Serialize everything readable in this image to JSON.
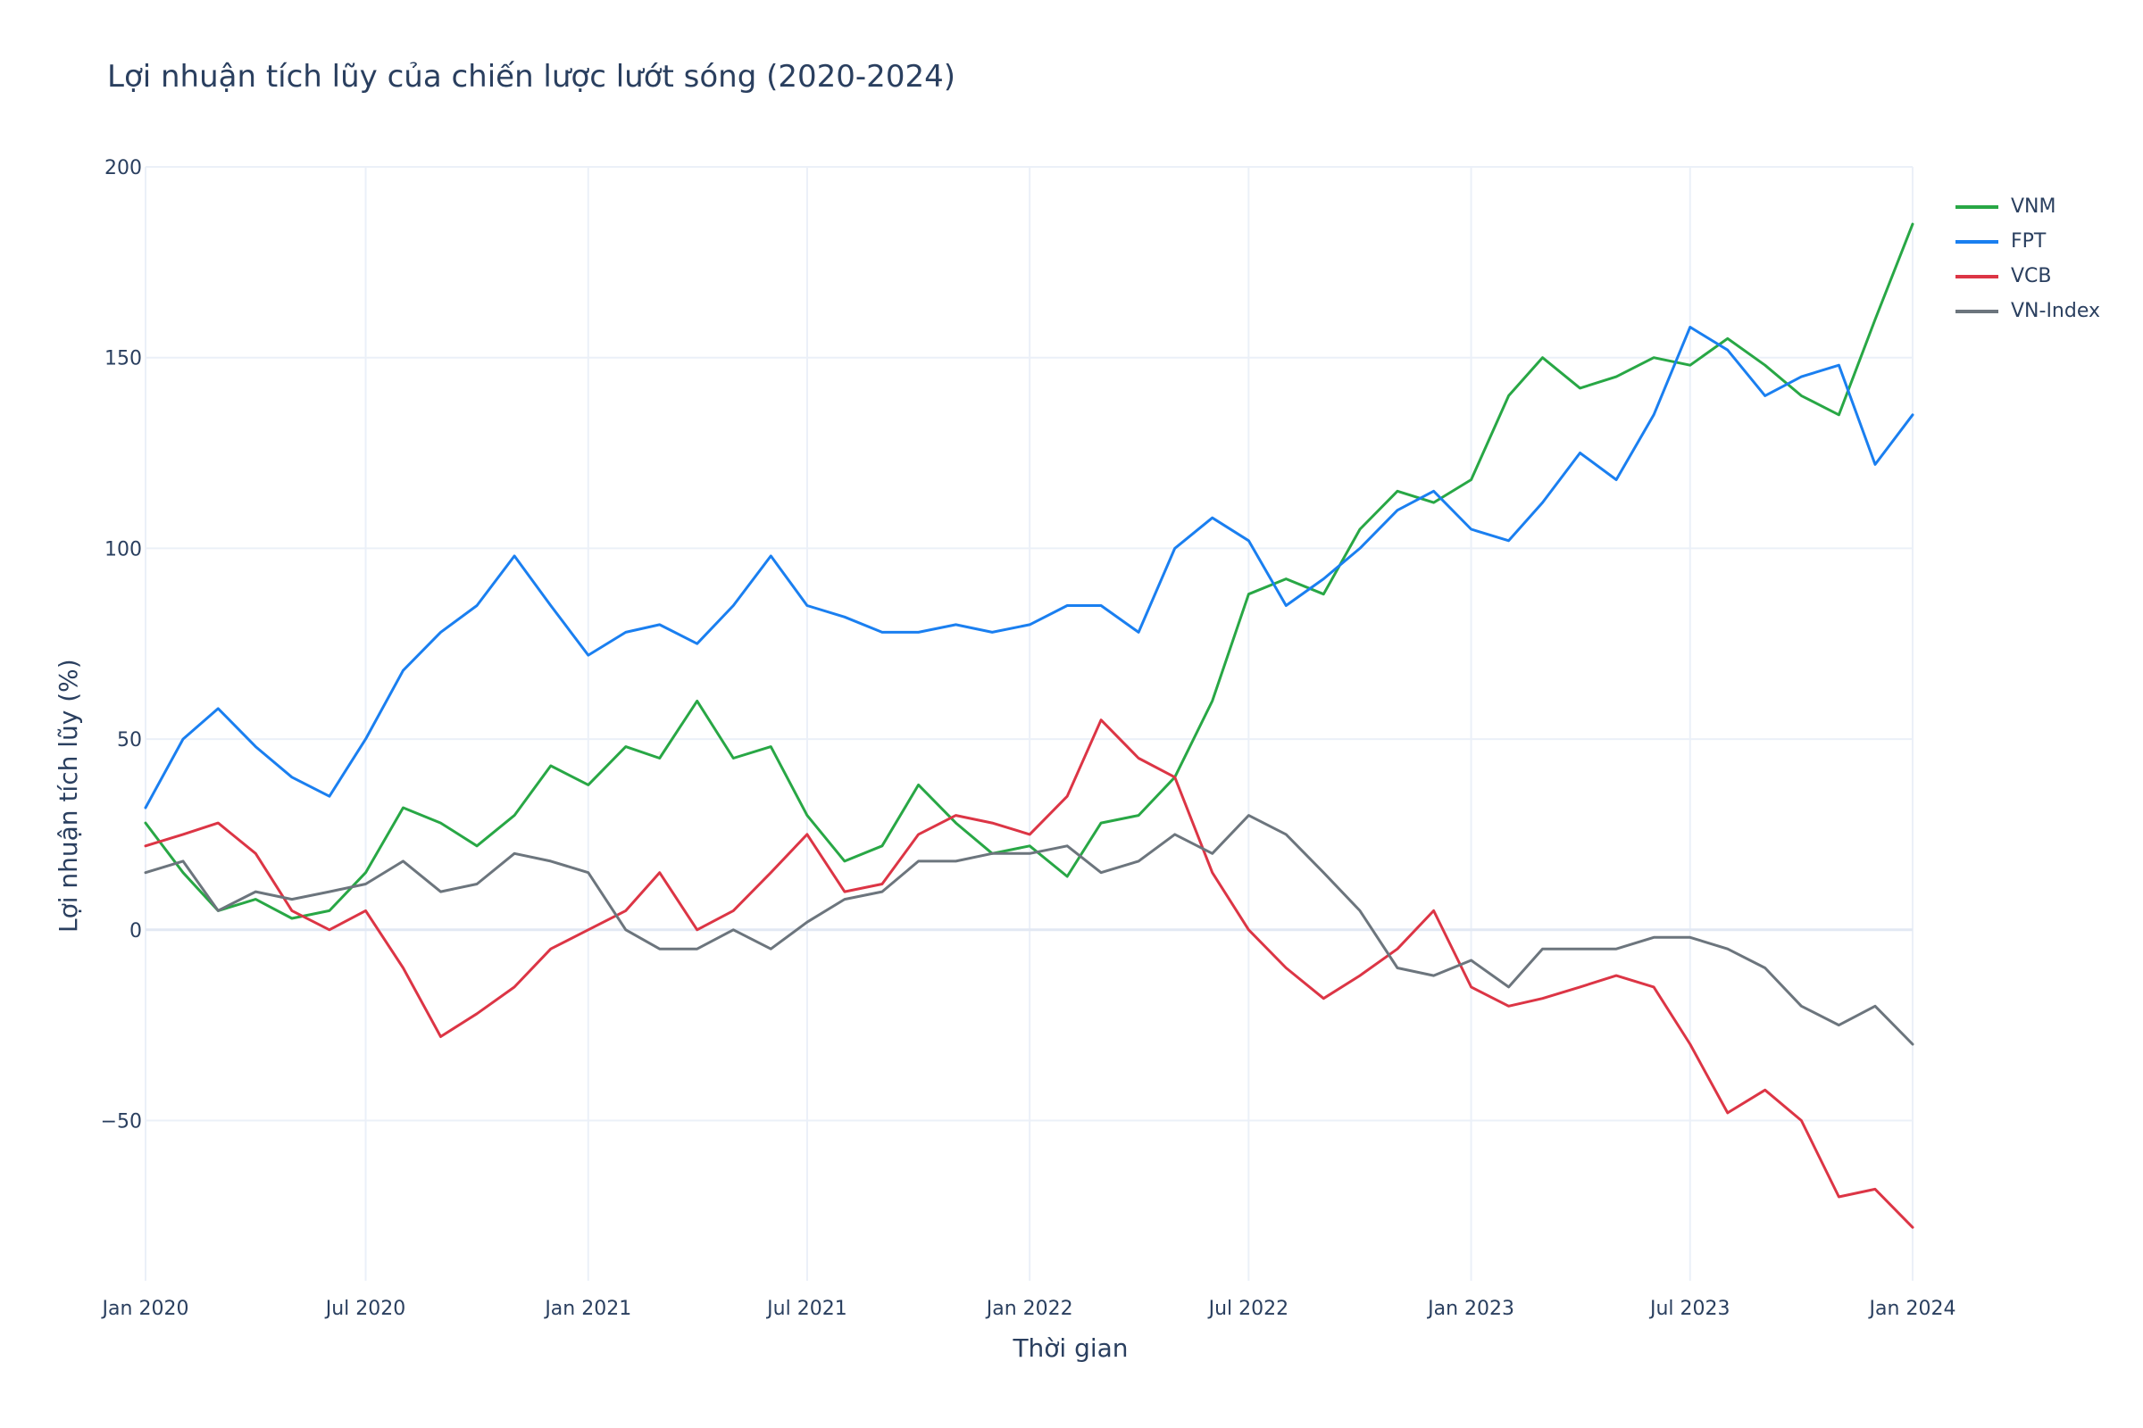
{
  "chart_data": {
    "type": "line",
    "title": "Lợi nhuận tích lũy của chiến lược lướt sóng (2020-2024)",
    "xlabel": "Thời gian",
    "ylabel": "Lợi nhuận tích lũy (%)",
    "x_tick_labels": [
      "Jan 2020",
      "Jul 2020",
      "Jan 2021",
      "Jul 2021",
      "Jan 2022",
      "Jul 2022",
      "Jan 2023",
      "Jul 2023",
      "Jan 2024"
    ],
    "x_tick_dates": [
      "2020-01-01",
      "2020-07-01",
      "2021-01-01",
      "2021-07-01",
      "2022-01-01",
      "2022-07-01",
      "2023-01-01",
      "2023-07-01",
      "2024-01-01"
    ],
    "y_ticks": [
      -50,
      0,
      50,
      100,
      150,
      200
    ],
    "y_tick_labels": [
      "−50",
      "0",
      "50",
      "100",
      "150",
      "200"
    ],
    "xlim": [
      "2020-01-01",
      "2024-01-01"
    ],
    "ylim": [
      -92,
      200
    ],
    "grid": true,
    "legend_position": "top-right",
    "series": [
      {
        "name": "VNM",
        "color": "#28a745",
        "x": [
          "2020-01-01",
          "2020-02-01",
          "2020-03-01",
          "2020-04-01",
          "2020-05-01",
          "2020-06-01",
          "2020-07-01",
          "2020-08-01",
          "2020-09-01",
          "2020-10-01",
          "2020-11-01",
          "2020-12-01",
          "2021-01-01",
          "2021-02-01",
          "2021-03-01",
          "2021-04-01",
          "2021-05-01",
          "2021-06-01",
          "2021-07-01",
          "2021-08-01",
          "2021-09-01",
          "2021-10-01",
          "2021-11-01",
          "2021-12-01",
          "2022-01-01",
          "2022-02-01",
          "2022-03-01",
          "2022-04-01",
          "2022-05-01",
          "2022-06-01",
          "2022-07-01",
          "2022-08-01",
          "2022-09-01",
          "2022-10-01",
          "2022-11-01",
          "2022-12-01",
          "2023-01-01",
          "2023-02-01",
          "2023-03-01",
          "2023-04-01",
          "2023-05-01",
          "2023-06-01",
          "2023-07-01",
          "2023-08-01",
          "2023-09-01",
          "2023-10-01",
          "2023-11-01",
          "2023-12-01",
          "2024-01-01"
        ],
        "y": [
          28,
          15,
          5,
          8,
          3,
          5,
          15,
          32,
          28,
          22,
          30,
          43,
          38,
          48,
          45,
          60,
          45,
          48,
          30,
          18,
          22,
          38,
          28,
          20,
          22,
          14,
          28,
          30,
          40,
          60,
          88,
          92,
          88,
          105,
          115,
          112,
          118,
          140,
          150,
          142,
          145,
          150,
          148,
          155,
          148,
          140,
          135,
          160,
          185
        ]
      },
      {
        "name": "FPT",
        "color": "#1a7ff0",
        "x": [
          "2020-01-01",
          "2020-02-01",
          "2020-03-01",
          "2020-04-01",
          "2020-05-01",
          "2020-06-01",
          "2020-07-01",
          "2020-08-01",
          "2020-09-01",
          "2020-10-01",
          "2020-11-01",
          "2020-12-01",
          "2021-01-01",
          "2021-02-01",
          "2021-03-01",
          "2021-04-01",
          "2021-05-01",
          "2021-06-01",
          "2021-07-01",
          "2021-08-01",
          "2021-09-01",
          "2021-10-01",
          "2021-11-01",
          "2021-12-01",
          "2022-01-01",
          "2022-02-01",
          "2022-03-01",
          "2022-04-01",
          "2022-05-01",
          "2022-06-01",
          "2022-07-01",
          "2022-08-01",
          "2022-09-01",
          "2022-10-01",
          "2022-11-01",
          "2022-12-01",
          "2023-01-01",
          "2023-02-01",
          "2023-03-01",
          "2023-04-01",
          "2023-05-01",
          "2023-06-01",
          "2023-07-01",
          "2023-08-01",
          "2023-09-01",
          "2023-10-01",
          "2023-11-01",
          "2023-12-01",
          "2024-01-01"
        ],
        "y": [
          32,
          50,
          58,
          48,
          40,
          35,
          50,
          68,
          78,
          85,
          98,
          85,
          72,
          78,
          80,
          75,
          85,
          98,
          85,
          82,
          78,
          78,
          80,
          78,
          80,
          85,
          85,
          78,
          100,
          108,
          102,
          85,
          92,
          100,
          110,
          115,
          105,
          102,
          112,
          125,
          118,
          135,
          158,
          152,
          140,
          145,
          148,
          122,
          135
        ]
      },
      {
        "name": "VCB",
        "color": "#dc3545",
        "x": [
          "2020-01-01",
          "2020-02-01",
          "2020-03-01",
          "2020-04-01",
          "2020-05-01",
          "2020-06-01",
          "2020-07-01",
          "2020-08-01",
          "2020-09-01",
          "2020-10-01",
          "2020-11-01",
          "2020-12-01",
          "2021-01-01",
          "2021-02-01",
          "2021-03-01",
          "2021-04-01",
          "2021-05-01",
          "2021-06-01",
          "2021-07-01",
          "2021-08-01",
          "2021-09-01",
          "2021-10-01",
          "2021-11-01",
          "2021-12-01",
          "2022-01-01",
          "2022-02-01",
          "2022-03-01",
          "2022-04-01",
          "2022-05-01",
          "2022-06-01",
          "2022-07-01",
          "2022-08-01",
          "2022-09-01",
          "2022-10-01",
          "2022-11-01",
          "2022-12-01",
          "2023-01-01",
          "2023-02-01",
          "2023-03-01",
          "2023-04-01",
          "2023-05-01",
          "2023-06-01",
          "2023-07-01",
          "2023-08-01",
          "2023-09-01",
          "2023-10-01",
          "2023-11-01",
          "2023-12-01",
          "2024-01-01"
        ],
        "y": [
          22,
          25,
          28,
          20,
          5,
          0,
          5,
          -10,
          -28,
          -22,
          -15,
          -5,
          0,
          5,
          15,
          0,
          5,
          15,
          25,
          10,
          12,
          25,
          30,
          28,
          25,
          35,
          55,
          45,
          40,
          15,
          0,
          -10,
          -18,
          -12,
          -5,
          5,
          -15,
          -20,
          -18,
          -15,
          -12,
          -15,
          -30,
          -48,
          -42,
          -50,
          -70,
          -68,
          -78
        ]
      },
      {
        "name": "VN-Index",
        "color": "#6c757d",
        "x": [
          "2020-01-01",
          "2020-02-01",
          "2020-03-01",
          "2020-04-01",
          "2020-05-01",
          "2020-06-01",
          "2020-07-01",
          "2020-08-01",
          "2020-09-01",
          "2020-10-01",
          "2020-11-01",
          "2020-12-01",
          "2021-01-01",
          "2021-02-01",
          "2021-03-01",
          "2021-04-01",
          "2021-05-01",
          "2021-06-01",
          "2021-07-01",
          "2021-08-01",
          "2021-09-01",
          "2021-10-01",
          "2021-11-01",
          "2021-12-01",
          "2022-01-01",
          "2022-02-01",
          "2022-03-01",
          "2022-04-01",
          "2022-05-01",
          "2022-06-01",
          "2022-07-01",
          "2022-08-01",
          "2022-09-01",
          "2022-10-01",
          "2022-11-01",
          "2022-12-01",
          "2023-01-01",
          "2023-02-01",
          "2023-03-01",
          "2023-04-01",
          "2023-05-01",
          "2023-06-01",
          "2023-07-01",
          "2023-08-01",
          "2023-09-01",
          "2023-10-01",
          "2023-11-01",
          "2023-12-01",
          "2024-01-01"
        ],
        "y": [
          15,
          18,
          5,
          10,
          8,
          10,
          12,
          18,
          10,
          12,
          20,
          18,
          15,
          0,
          -5,
          -5,
          0,
          -5,
          2,
          8,
          10,
          18,
          18,
          20,
          20,
          22,
          15,
          18,
          25,
          20,
          30,
          25,
          15,
          5,
          -10,
          -12,
          -8,
          -15,
          -5,
          -5,
          -5,
          -2,
          -2,
          -5,
          -10,
          -20,
          -25,
          -20,
          -30
        ]
      }
    ]
  }
}
